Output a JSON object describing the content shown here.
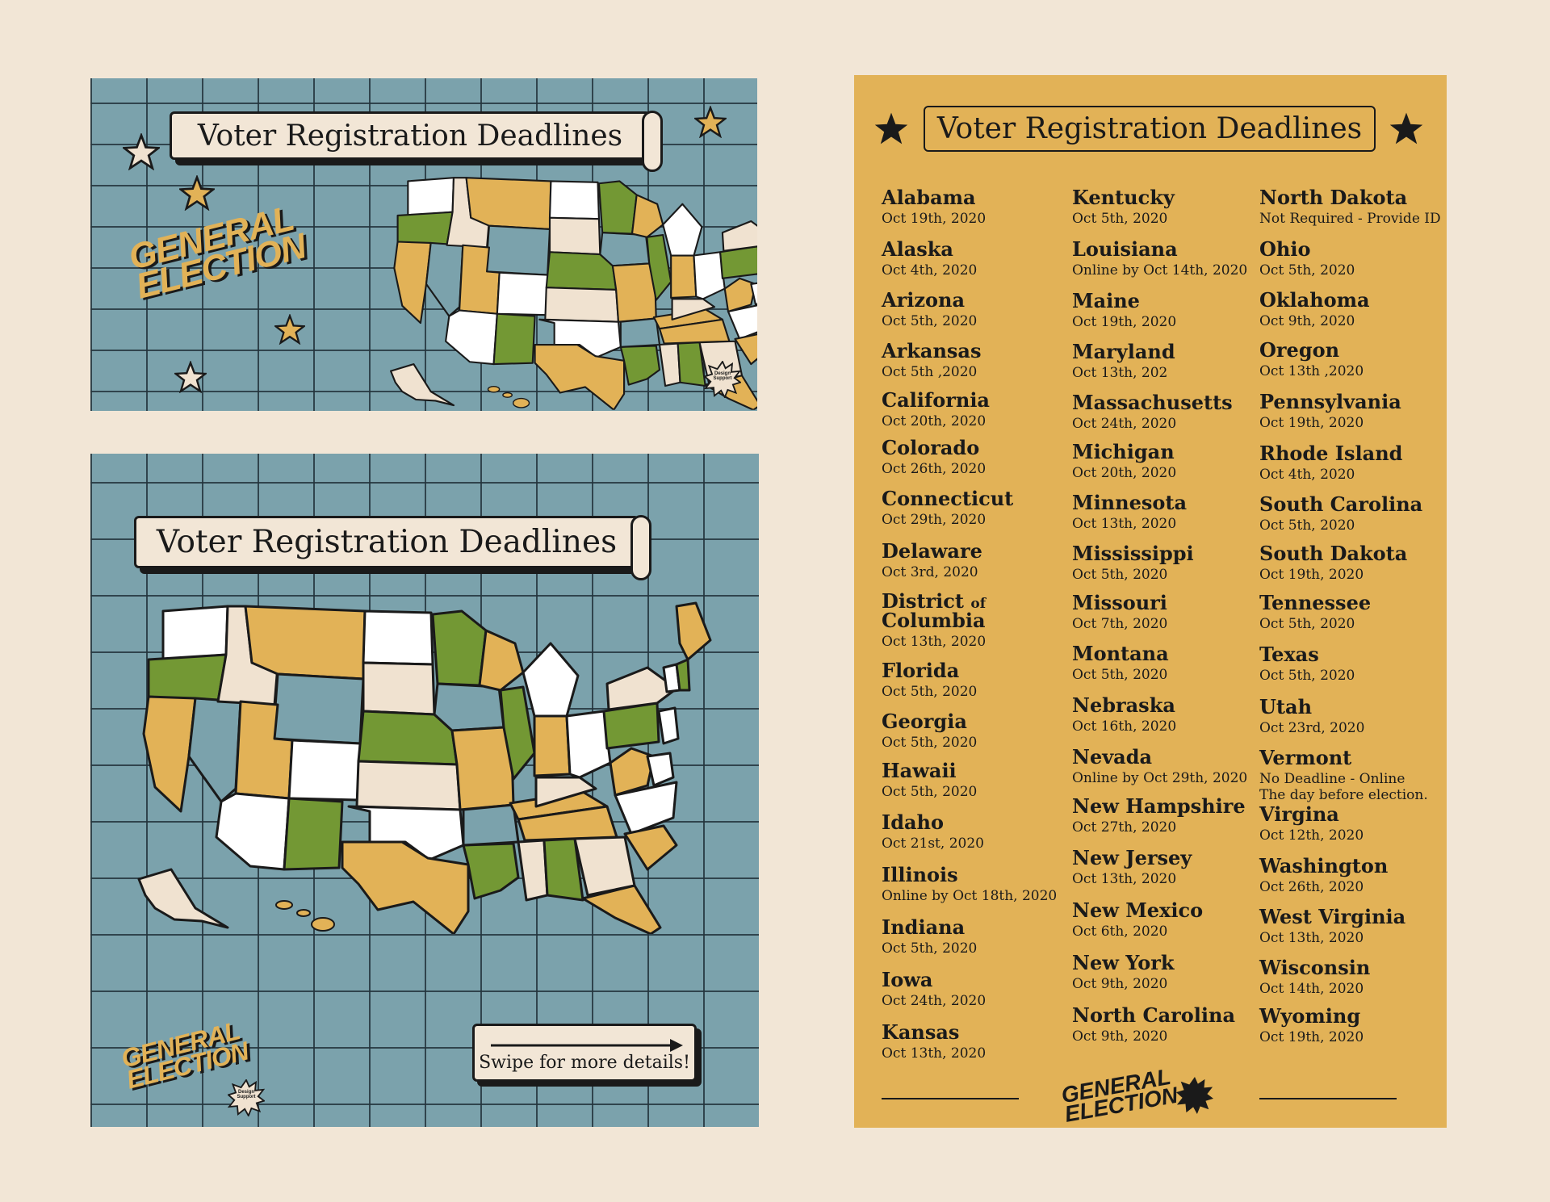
{
  "title": "Voter Registration Deadlines",
  "badge": {
    "line1": "GENERAL",
    "line2": "ELECTION"
  },
  "stamp": {
    "line1": "Design",
    "line2": "Support"
  },
  "swipe_label": "Swipe for more details!",
  "colors": {
    "background": "#f2e6d6",
    "map_blue": "#7ba2ac",
    "gold": "#e2b257",
    "green": "#739834",
    "cream": "#f0e2d0",
    "white": "#ffffff",
    "ink": "#1a1a1a"
  },
  "states": [
    {
      "name": "Alabama",
      "date": "Oct 19th, 2020"
    },
    {
      "name": "Alaska",
      "date": "Oct 4th, 2020"
    },
    {
      "name": "Arizona",
      "date": "Oct 5th, 2020"
    },
    {
      "name": "Arkansas",
      "date": "Oct 5th ,2020"
    },
    {
      "name": "California",
      "date": "Oct 20th, 2020"
    },
    {
      "name": "Colorado",
      "date": "Oct 26th, 2020"
    },
    {
      "name": "Connecticut",
      "date": "Oct 29th, 2020"
    },
    {
      "name": "Delaware",
      "date": "Oct 3rd, 2020"
    },
    {
      "name": "District",
      "name_of": "of",
      "name_line2": "Columbia",
      "date": "Oct 13th, 2020"
    },
    {
      "name": "Florida",
      "date": "Oct 5th, 2020"
    },
    {
      "name": "Georgia",
      "date": "Oct 5th, 2020"
    },
    {
      "name": "Hawaii",
      "date": "Oct 5th, 2020"
    },
    {
      "name": "Idaho",
      "date": "Oct 21st, 2020"
    },
    {
      "name": "Illinois",
      "date": "Online by Oct 18th, 2020"
    },
    {
      "name": "Indiana",
      "date": "Oct 5th, 2020"
    },
    {
      "name": "Iowa",
      "date": "Oct 24th, 2020"
    },
    {
      "name": "Kansas",
      "date": "Oct 13th, 2020"
    },
    {
      "name": "Kentucky",
      "date": "Oct 5th, 2020"
    },
    {
      "name": "Louisiana",
      "date": "Online by Oct 14th, 2020"
    },
    {
      "name": "Maine",
      "date": "Oct 19th, 2020"
    },
    {
      "name": "Maryland",
      "date": "Oct 13th, 202"
    },
    {
      "name": "Massachusetts",
      "date": "Oct 24th, 2020"
    },
    {
      "name": "Michigan",
      "date": "Oct 20th, 2020"
    },
    {
      "name": "Minnesota",
      "date": "Oct 13th, 2020"
    },
    {
      "name": "Mississippi",
      "date": "Oct 5th, 2020"
    },
    {
      "name": "Missouri",
      "date": "Oct 7th, 2020"
    },
    {
      "name": "Montana",
      "date": "Oct 5th, 2020"
    },
    {
      "name": "Nebraska",
      "date": "Oct 16th, 2020"
    },
    {
      "name": "Nevada",
      "date": "Online by Oct 29th, 2020"
    },
    {
      "name": "New Hampshire",
      "date": "Oct 27th, 2020"
    },
    {
      "name": "New Jersey",
      "date": "Oct 13th, 2020"
    },
    {
      "name": "New Mexico",
      "date": "Oct 6th, 2020"
    },
    {
      "name": "New York",
      "date": "Oct 9th, 2020"
    },
    {
      "name": "North Carolina",
      "date": "Oct 9th, 2020"
    },
    {
      "name": "North Dakota",
      "date": "Not Required - Provide ID"
    },
    {
      "name": "Ohio",
      "date": "Oct 5th, 2020"
    },
    {
      "name": "Oklahoma",
      "date": "Oct 9th, 2020"
    },
    {
      "name": "Oregon",
      "date": "Oct 13th ,2020"
    },
    {
      "name": "Pennsylvania",
      "date": "Oct 19th, 2020"
    },
    {
      "name": "Rhode Island",
      "date": "Oct 4th, 2020"
    },
    {
      "name": "South Carolina",
      "date": "Oct 5th, 2020"
    },
    {
      "name": "South Dakota",
      "date": "Oct 19th, 2020"
    },
    {
      "name": "Tennessee",
      "date": "Oct 5th, 2020"
    },
    {
      "name": "Texas",
      "date": "Oct 5th, 2020"
    },
    {
      "name": "Utah",
      "date": "Oct 23rd, 2020"
    },
    {
      "name": "Vermont",
      "date": "No Deadline - Online",
      "date_line2": "The day before election."
    },
    {
      "name": "Virgina",
      "date": "Oct 12th, 2020"
    },
    {
      "name": "Washington",
      "date": "Oct 26th, 2020"
    },
    {
      "name": "West Virginia",
      "date": "Oct 13th, 2020"
    },
    {
      "name": "Wisconsin",
      "date": "Oct 14th, 2020"
    },
    {
      "name": "Wyoming",
      "date": "Oct 19th, 2020"
    }
  ]
}
